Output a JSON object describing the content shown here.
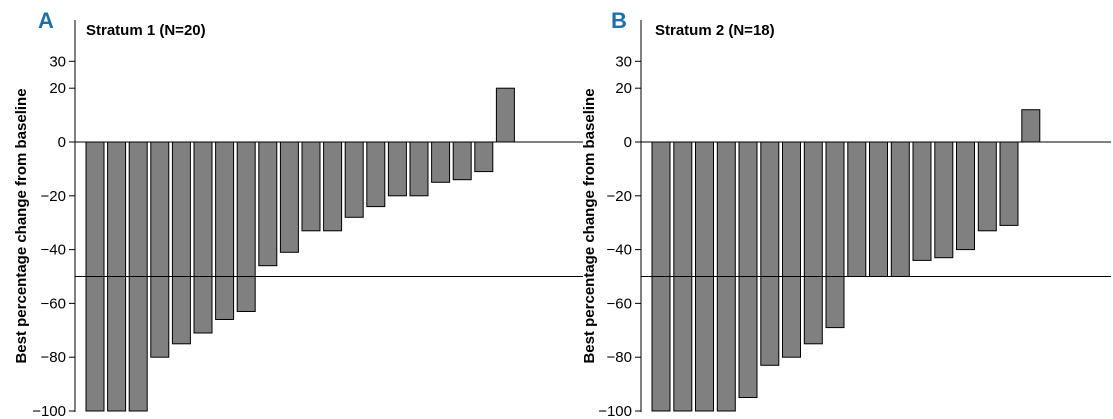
{
  "chart_data": [
    {
      "type": "bar",
      "panel_label": "A",
      "title": "Stratum 1 (N=20)",
      "ylabel": "Best  percentage change from baseline",
      "xlabel": "",
      "yticks": [
        30,
        20,
        0,
        -20,
        -40,
        -60,
        -80,
        -100
      ],
      "ytick_labels": [
        "30",
        "20",
        "0",
        "−20",
        "−40",
        "−60",
        "−80",
        "−100"
      ],
      "ylim": [
        -100,
        36
      ],
      "reference_lines": [
        0,
        -50
      ],
      "grid": false,
      "bar_color": "#808080",
      "values": [
        -100,
        -100,
        -100,
        -80,
        -75,
        -71,
        -66,
        -63,
        -46,
        -41,
        -33,
        -33,
        -28,
        -24,
        -20,
        -20,
        -15,
        -14,
        -11,
        20
      ]
    },
    {
      "type": "bar",
      "panel_label": "B",
      "title": "Stratum 2 (N=18)",
      "ylabel": "Best  percentage change from baseline",
      "xlabel": "",
      "yticks": [
        30,
        20,
        0,
        -20,
        -40,
        -60,
        -80,
        -100
      ],
      "ytick_labels": [
        "30",
        "20",
        "0",
        "−20",
        "−40",
        "−60",
        "−80",
        "−100"
      ],
      "ylim": [
        -100,
        36
      ],
      "reference_lines": [
        0,
        -50
      ],
      "grid": false,
      "bar_color": "#808080",
      "values": [
        -100,
        -100,
        -100,
        -100,
        -95,
        -83,
        -80,
        -75,
        -69,
        -50,
        -50,
        -50,
        -44,
        -43,
        -40,
        -33,
        -31,
        12
      ]
    }
  ],
  "colors": {
    "panel_letter": "#1f6fa8",
    "bar_fill": "#808080",
    "bar_stroke": "#000000"
  }
}
